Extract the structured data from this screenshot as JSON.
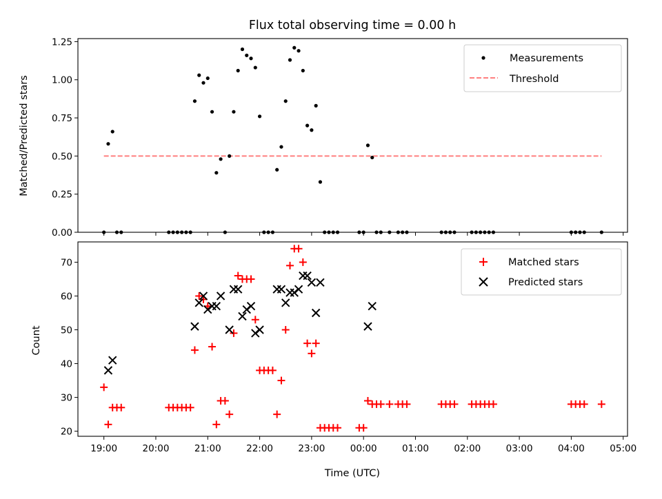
{
  "chart_data": [
    {
      "type": "scatter",
      "title": "Flux total observing time = 0.00 h",
      "xlabel": "",
      "ylabel": "Matched/Predicted stars",
      "ylim": [
        0,
        1.27
      ],
      "xlim": [
        "18:30",
        "05:05"
      ],
      "yticks": [
        "0.00",
        "0.25",
        "0.50",
        "0.75",
        "1.00",
        "1.25"
      ],
      "ytick_values": [
        0,
        0.25,
        0.5,
        0.75,
        1.0,
        1.25
      ],
      "legend_position": "upper-right",
      "series": [
        {
          "name": "Measurements",
          "marker": "dot",
          "color": "#000000",
          "points": [
            [
              "19:00",
              0
            ],
            [
              "19:05",
              0.58
            ],
            [
              "19:10",
              0.66
            ],
            [
              "19:15",
              0
            ],
            [
              "19:20",
              0
            ],
            [
              "20:15",
              0
            ],
            [
              "20:20",
              0
            ],
            [
              "20:25",
              0
            ],
            [
              "20:30",
              0
            ],
            [
              "20:35",
              0
            ],
            [
              "20:40",
              0
            ],
            [
              "20:45",
              0.86
            ],
            [
              "20:50",
              1.03
            ],
            [
              "20:55",
              0.98
            ],
            [
              "21:00",
              1.01
            ],
            [
              "21:05",
              0.79
            ],
            [
              "21:10",
              0.39
            ],
            [
              "21:15",
              0.48
            ],
            [
              "21:20",
              0
            ],
            [
              "21:25",
              0.5
            ],
            [
              "21:30",
              0.79
            ],
            [
              "21:35",
              1.06
            ],
            [
              "21:40",
              1.2
            ],
            [
              "21:45",
              1.16
            ],
            [
              "21:50",
              1.14
            ],
            [
              "21:55",
              1.08
            ],
            [
              "22:00",
              0.76
            ],
            [
              "22:05",
              0
            ],
            [
              "22:10",
              0
            ],
            [
              "22:15",
              0
            ],
            [
              "22:20",
              0.41
            ],
            [
              "22:25",
              0.56
            ],
            [
              "22:30",
              0.86
            ],
            [
              "22:35",
              1.13
            ],
            [
              "22:40",
              1.21
            ],
            [
              "22:45",
              1.19
            ],
            [
              "22:50",
              1.06
            ],
            [
              "22:55",
              0.7
            ],
            [
              "23:00",
              0.67
            ],
            [
              "23:05",
              0.83
            ],
            [
              "23:10",
              0.33
            ],
            [
              "23:15",
              0
            ],
            [
              "23:20",
              0
            ],
            [
              "23:25",
              0
            ],
            [
              "23:30",
              0
            ],
            [
              "23:55",
              0
            ],
            [
              "24:00",
              0
            ],
            [
              "24:05",
              0.57
            ],
            [
              "24:10",
              0.49
            ],
            [
              "24:15",
              0
            ],
            [
              "24:20",
              0
            ],
            [
              "24:30",
              0
            ],
            [
              "24:40",
              0
            ],
            [
              "24:45",
              0
            ],
            [
              "24:50",
              0
            ],
            [
              "25:30",
              0
            ],
            [
              "25:35",
              0
            ],
            [
              "25:40",
              0
            ],
            [
              "25:45",
              0
            ],
            [
              "26:05",
              0
            ],
            [
              "26:10",
              0
            ],
            [
              "26:15",
              0
            ],
            [
              "26:20",
              0
            ],
            [
              "26:25",
              0
            ],
            [
              "26:30",
              0
            ],
            [
              "28:00",
              0
            ],
            [
              "28:05",
              0
            ],
            [
              "28:10",
              0
            ],
            [
              "28:15",
              0
            ],
            [
              "28:35",
              0
            ]
          ]
        },
        {
          "name": "Threshold",
          "marker": "dashed-line",
          "color": "#ff7f7f",
          "x": [
            "19:00",
            "28:35"
          ],
          "y": [
            0.5,
            0.5
          ]
        }
      ]
    },
    {
      "type": "scatter",
      "title": "",
      "xlabel": "Time (UTC)",
      "ylabel": "Count",
      "ylim": [
        18.5,
        76
      ],
      "xlim": [
        "18:30",
        "05:05"
      ],
      "yticks": [
        "20",
        "30",
        "40",
        "50",
        "60",
        "70"
      ],
      "ytick_values": [
        20,
        30,
        40,
        50,
        60,
        70
      ],
      "xticks": [
        "19:00",
        "20:00",
        "21:00",
        "22:00",
        "23:00",
        "00:00",
        "01:00",
        "02:00",
        "03:00",
        "04:00",
        "05:00"
      ],
      "legend_position": "upper-right",
      "series": [
        {
          "name": "Matched stars",
          "marker": "plus",
          "color": "#ff0000",
          "points": [
            [
              "19:00",
              33
            ],
            [
              "19:05",
              22
            ],
            [
              "19:10",
              27
            ],
            [
              "19:15",
              27
            ],
            [
              "19:20",
              27
            ],
            [
              "20:15",
              27
            ],
            [
              "20:20",
              27
            ],
            [
              "20:25",
              27
            ],
            [
              "20:30",
              27
            ],
            [
              "20:35",
              27
            ],
            [
              "20:40",
              27
            ],
            [
              "20:45",
              44
            ],
            [
              "20:50",
              60
            ],
            [
              "20:55",
              59
            ],
            [
              "21:00",
              57
            ],
            [
              "21:05",
              45
            ],
            [
              "21:10",
              22
            ],
            [
              "21:15",
              29
            ],
            [
              "21:20",
              29
            ],
            [
              "21:25",
              25
            ],
            [
              "21:30",
              49
            ],
            [
              "21:35",
              66
            ],
            [
              "21:40",
              65
            ],
            [
              "21:45",
              65
            ],
            [
              "21:50",
              65
            ],
            [
              "21:55",
              53
            ],
            [
              "22:00",
              38
            ],
            [
              "22:05",
              38
            ],
            [
              "22:10",
              38
            ],
            [
              "22:15",
              38
            ],
            [
              "22:20",
              25
            ],
            [
              "22:25",
              35
            ],
            [
              "22:30",
              50
            ],
            [
              "22:35",
              69
            ],
            [
              "22:40",
              74
            ],
            [
              "22:45",
              74
            ],
            [
              "22:50",
              70
            ],
            [
              "22:55",
              46
            ],
            [
              "23:00",
              43
            ],
            [
              "23:05",
              46
            ],
            [
              "23:10",
              21
            ],
            [
              "23:15",
              21
            ],
            [
              "23:20",
              21
            ],
            [
              "23:25",
              21
            ],
            [
              "23:30",
              21
            ],
            [
              "23:55",
              21
            ],
            [
              "24:00",
              21
            ],
            [
              "24:05",
              29
            ],
            [
              "24:10",
              28
            ],
            [
              "24:15",
              28
            ],
            [
              "24:20",
              28
            ],
            [
              "24:30",
              28
            ],
            [
              "24:40",
              28
            ],
            [
              "24:45",
              28
            ],
            [
              "24:50",
              28
            ],
            [
              "25:30",
              28
            ],
            [
              "25:35",
              28
            ],
            [
              "25:40",
              28
            ],
            [
              "25:45",
              28
            ],
            [
              "26:05",
              28
            ],
            [
              "26:10",
              28
            ],
            [
              "26:15",
              28
            ],
            [
              "26:20",
              28
            ],
            [
              "26:25",
              28
            ],
            [
              "26:30",
              28
            ],
            [
              "28:00",
              28
            ],
            [
              "28:05",
              28
            ],
            [
              "28:10",
              28
            ],
            [
              "28:15",
              28
            ],
            [
              "28:35",
              28
            ]
          ]
        },
        {
          "name": "Predicted stars",
          "marker": "x",
          "color": "#000000",
          "points": [
            [
              "19:05",
              38
            ],
            [
              "19:10",
              41
            ],
            [
              "20:45",
              51
            ],
            [
              "20:50",
              58
            ],
            [
              "20:55",
              60
            ],
            [
              "21:00",
              56
            ],
            [
              "21:05",
              57
            ],
            [
              "21:10",
              57
            ],
            [
              "21:15",
              60
            ],
            [
              "21:25",
              50
            ],
            [
              "21:30",
              62
            ],
            [
              "21:35",
              62
            ],
            [
              "21:40",
              54
            ],
            [
              "21:45",
              56
            ],
            [
              "21:50",
              57
            ],
            [
              "21:55",
              49
            ],
            [
              "22:00",
              50
            ],
            [
              "22:20",
              62
            ],
            [
              "22:25",
              62
            ],
            [
              "22:30",
              58
            ],
            [
              "22:35",
              61
            ],
            [
              "22:40",
              61
            ],
            [
              "22:45",
              62
            ],
            [
              "22:50",
              66
            ],
            [
              "22:55",
              66
            ],
            [
              "23:00",
              64
            ],
            [
              "23:05",
              55
            ],
            [
              "23:10",
              64
            ],
            [
              "24:05",
              51
            ],
            [
              "24:10",
              57
            ]
          ]
        }
      ]
    }
  ]
}
